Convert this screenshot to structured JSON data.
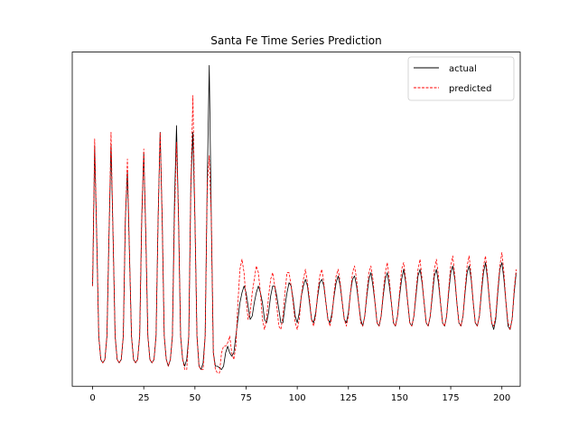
{
  "chart_data": {
    "type": "line",
    "title": "Santa Fe Time Series Prediction",
    "xlabel": "",
    "ylabel": "",
    "xlim": [
      -9.95,
      208.95
    ],
    "ylim": [
      0,
      1
    ],
    "x_ticks": [
      0,
      25,
      50,
      75,
      100,
      125,
      150,
      175,
      200
    ],
    "x_tick_labels": [
      "0",
      "25",
      "50",
      "75",
      "100",
      "125",
      "150",
      "175",
      "200"
    ],
    "y_ticks_shown": false,
    "grid": false,
    "legend_position": "top-right",
    "x_start": 0,
    "x_step": 1,
    "series": [
      {
        "name": "actual",
        "color": "#000000",
        "style": "solid",
        "values": [
          0.3,
          0.72,
          0.45,
          0.15,
          0.08,
          0.07,
          0.08,
          0.15,
          0.45,
          0.72,
          0.45,
          0.15,
          0.08,
          0.07,
          0.08,
          0.15,
          0.5,
          0.64,
          0.4,
          0.15,
          0.08,
          0.07,
          0.08,
          0.15,
          0.5,
          0.7,
          0.45,
          0.15,
          0.08,
          0.07,
          0.08,
          0.15,
          0.5,
          0.76,
          0.5,
          0.15,
          0.08,
          0.06,
          0.08,
          0.15,
          0.55,
          0.78,
          0.5,
          0.15,
          0.08,
          0.06,
          0.08,
          0.15,
          0.6,
          0.76,
          0.5,
          0.15,
          0.06,
          0.05,
          0.07,
          0.15,
          0.6,
          0.96,
          0.5,
          0.1,
          0.06,
          0.06,
          0.055,
          0.05,
          0.06,
          0.1,
          0.12,
          0.1,
          0.09,
          0.1,
          0.15,
          0.2,
          0.25,
          0.28,
          0.3,
          0.28,
          0.24,
          0.2,
          0.21,
          0.25,
          0.28,
          0.3,
          0.28,
          0.25,
          0.2,
          0.19,
          0.22,
          0.27,
          0.3,
          0.3,
          0.27,
          0.23,
          0.19,
          0.19,
          0.24,
          0.28,
          0.31,
          0.3,
          0.26,
          0.21,
          0.19,
          0.22,
          0.27,
          0.3,
          0.32,
          0.3,
          0.25,
          0.2,
          0.19,
          0.22,
          0.27,
          0.31,
          0.32,
          0.3,
          0.25,
          0.2,
          0.19,
          0.22,
          0.27,
          0.31,
          0.33,
          0.3,
          0.25,
          0.2,
          0.19,
          0.22,
          0.28,
          0.32,
          0.33,
          0.3,
          0.25,
          0.2,
          0.18,
          0.21,
          0.27,
          0.32,
          0.34,
          0.3,
          0.25,
          0.19,
          0.18,
          0.21,
          0.27,
          0.32,
          0.34,
          0.3,
          0.25,
          0.19,
          0.18,
          0.21,
          0.27,
          0.32,
          0.35,
          0.31,
          0.25,
          0.19,
          0.18,
          0.21,
          0.27,
          0.33,
          0.35,
          0.31,
          0.25,
          0.19,
          0.18,
          0.21,
          0.27,
          0.33,
          0.35,
          0.31,
          0.25,
          0.19,
          0.18,
          0.21,
          0.28,
          0.34,
          0.36,
          0.32,
          0.25,
          0.19,
          0.18,
          0.21,
          0.28,
          0.34,
          0.36,
          0.32,
          0.25,
          0.19,
          0.18,
          0.21,
          0.28,
          0.34,
          0.37,
          0.32,
          0.25,
          0.19,
          0.17,
          0.2,
          0.28,
          0.35,
          0.37,
          0.32,
          0.25,
          0.18,
          0.17,
          0.2,
          0.28,
          0.34
        ]
      },
      {
        "name": "predicted",
        "color": "#ff0000",
        "style": "dashed",
        "values": [
          0.3,
          0.74,
          0.45,
          0.15,
          0.08,
          0.07,
          0.08,
          0.15,
          0.45,
          0.76,
          0.45,
          0.15,
          0.08,
          0.07,
          0.08,
          0.15,
          0.5,
          0.68,
          0.4,
          0.15,
          0.08,
          0.07,
          0.08,
          0.15,
          0.5,
          0.71,
          0.45,
          0.15,
          0.08,
          0.07,
          0.08,
          0.15,
          0.5,
          0.76,
          0.5,
          0.15,
          0.08,
          0.06,
          0.08,
          0.15,
          0.5,
          0.73,
          0.5,
          0.15,
          0.08,
          0.05,
          0.05,
          0.15,
          0.6,
          0.87,
          0.5,
          0.15,
          0.06,
          0.05,
          0.05,
          0.15,
          0.6,
          0.69,
          0.5,
          0.1,
          0.05,
          0.04,
          0.04,
          0.1,
          0.12,
          0.12,
          0.13,
          0.15,
          0.1,
          0.08,
          0.12,
          0.25,
          0.35,
          0.38,
          0.34,
          0.26,
          0.2,
          0.22,
          0.28,
          0.32,
          0.36,
          0.34,
          0.28,
          0.2,
          0.17,
          0.2,
          0.27,
          0.32,
          0.34,
          0.3,
          0.24,
          0.18,
          0.17,
          0.21,
          0.28,
          0.34,
          0.34,
          0.3,
          0.25,
          0.19,
          0.17,
          0.2,
          0.27,
          0.32,
          0.35,
          0.31,
          0.26,
          0.2,
          0.18,
          0.21,
          0.28,
          0.33,
          0.35,
          0.31,
          0.25,
          0.2,
          0.18,
          0.21,
          0.28,
          0.33,
          0.35,
          0.31,
          0.25,
          0.2,
          0.18,
          0.21,
          0.28,
          0.34,
          0.36,
          0.32,
          0.25,
          0.19,
          0.18,
          0.21,
          0.28,
          0.34,
          0.36,
          0.32,
          0.25,
          0.19,
          0.18,
          0.21,
          0.28,
          0.34,
          0.37,
          0.32,
          0.25,
          0.19,
          0.18,
          0.21,
          0.28,
          0.35,
          0.37,
          0.32,
          0.25,
          0.19,
          0.18,
          0.21,
          0.28,
          0.35,
          0.38,
          0.32,
          0.25,
          0.19,
          0.18,
          0.21,
          0.28,
          0.35,
          0.38,
          0.33,
          0.25,
          0.19,
          0.18,
          0.21,
          0.29,
          0.36,
          0.39,
          0.33,
          0.25,
          0.19,
          0.18,
          0.21,
          0.29,
          0.36,
          0.39,
          0.33,
          0.25,
          0.19,
          0.18,
          0.21,
          0.29,
          0.36,
          0.39,
          0.33,
          0.25,
          0.19,
          0.18,
          0.21,
          0.29,
          0.36,
          0.4,
          0.34,
          0.25,
          0.19,
          0.17,
          0.2,
          0.29,
          0.35
        ]
      }
    ]
  }
}
